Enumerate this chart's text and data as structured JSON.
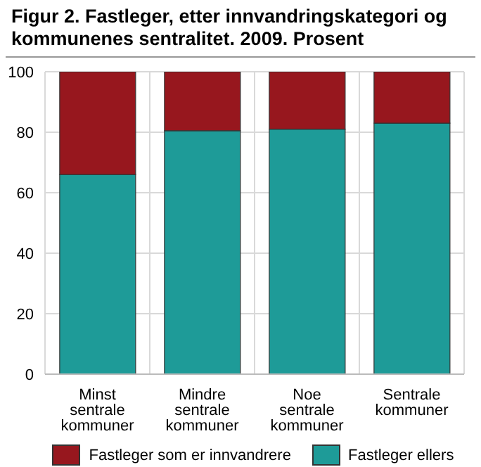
{
  "chart_data": {
    "type": "bar",
    "title": "Figur 2. Fastleger, etter innvandringskategori og kommunenes sentralitet. 2009. Prosent",
    "categories": [
      "Minst sentrale kommuner",
      "Mindre sentrale kommuner",
      "Noe sentrale kommuner",
      "Sentrale kommuner"
    ],
    "series": [
      {
        "name": "Fastleger ellers",
        "color": "#1e9b98",
        "values": [
          66,
          80.5,
          81,
          83
        ]
      },
      {
        "name": "Fastleger som er innvandrere",
        "color": "#97171e",
        "values": [
          34,
          19.5,
          19,
          17
        ]
      }
    ],
    "stacked": true,
    "ylim": [
      0,
      100
    ],
    "yticks": [
      0,
      20,
      40,
      60,
      80,
      100
    ],
    "grid": true,
    "legend": "bottom"
  }
}
